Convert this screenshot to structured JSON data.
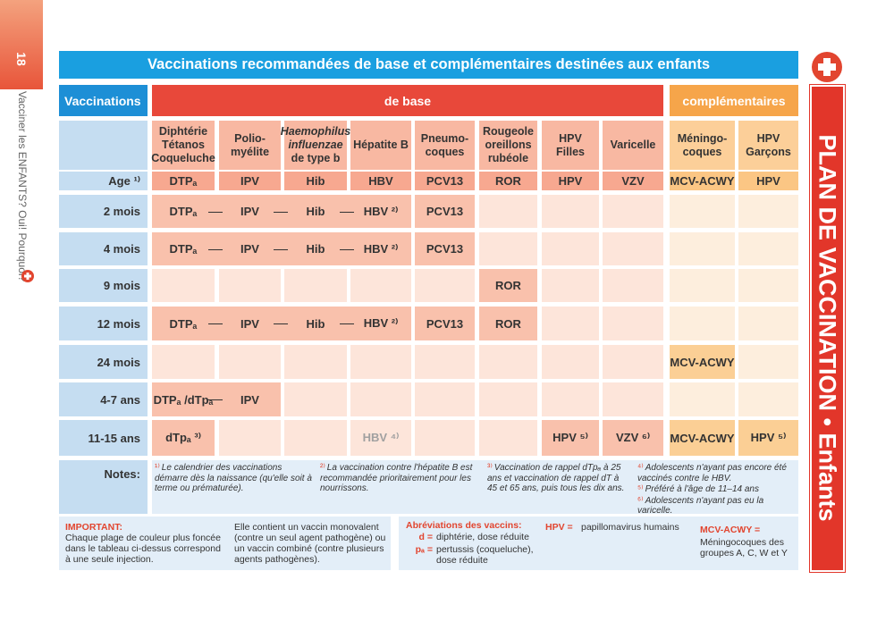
{
  "page_number": "18",
  "side_text": "Vacciner les ENFANTS? Oui! Pourquoi?",
  "title": "Vaccinations recommandées de base et complémentaires destinées aux enfants",
  "side_banner": "PLAN DE VACCINATION • Enfants",
  "table": {
    "corner": "Vaccinations",
    "group_base": "de base",
    "group_compl": "complémentaires",
    "age_label": "Age ¹⁾",
    "vaccines": [
      {
        "name": [
          "Diphtérie",
          "Tétanos",
          "Coqueluche"
        ],
        "abbr": "DTPₐ"
      },
      {
        "name": [
          "Polio-",
          "myélite"
        ],
        "abbr": "IPV"
      },
      {
        "name": [
          "Haemophilus",
          "influenzae",
          "de type b"
        ],
        "abbr": "Hib"
      },
      {
        "name": [
          "Hépatite B"
        ],
        "abbr": "HBV"
      },
      {
        "name": [
          "Pneumo-",
          "coques"
        ],
        "abbr": "PCV13"
      },
      {
        "name": [
          "Rougeole",
          "oreillons",
          "rubéole"
        ],
        "abbr": "ROR"
      },
      {
        "name": [
          "HPV",
          "Filles"
        ],
        "abbr": "HPV"
      },
      {
        "name": [
          "Varicelle"
        ],
        "abbr": "VZV"
      },
      {
        "name": [
          "Méningo-",
          "coques"
        ],
        "abbr": "MCV-ACWY"
      },
      {
        "name": [
          "HPV",
          "Garçons"
        ],
        "abbr": "HPV"
      }
    ],
    "rows": [
      {
        "age": "2 mois",
        "cells": [
          "DTPₐ",
          "IPV",
          "Hib",
          "HBV ²⁾",
          "PCV13",
          null,
          null,
          null,
          null,
          null
        ]
      },
      {
        "age": "4 mois",
        "cells": [
          "DTPₐ",
          "IPV",
          "Hib",
          "HBV ²⁾",
          "PCV13",
          null,
          null,
          null,
          null,
          null
        ]
      },
      {
        "age": "9 mois",
        "cells": [
          null,
          null,
          null,
          null,
          null,
          "ROR",
          null,
          null,
          null,
          null
        ]
      },
      {
        "age": "12 mois",
        "cells": [
          "DTPₐ",
          "IPV",
          "Hib",
          "HBV ²⁾",
          "PCV13",
          "ROR",
          null,
          null,
          null,
          null
        ]
      },
      {
        "age": "24 mois",
        "cells": [
          null,
          null,
          null,
          null,
          null,
          null,
          null,
          null,
          "MCV-ACWY",
          null
        ]
      },
      {
        "age": "4-7 ans",
        "cells": [
          "DTPₐ /dTpₐ",
          "IPV",
          null,
          null,
          null,
          null,
          null,
          null,
          null,
          null
        ]
      },
      {
        "age": "11-15 ans",
        "cells": [
          "dTpₐ ³⁾",
          null,
          null,
          "HBV ⁴⁾",
          null,
          null,
          "HPV ⁵⁾",
          "VZV ⁶⁾",
          "MCV-ACWY",
          "HPV ⁵⁾"
        ]
      }
    ],
    "notes_label": "Notes:",
    "notes": [
      [
        {
          "mark": "¹⁾",
          "text": "Le calendrier des vaccinations démarre dès la naissance (qu'elle soit à terme ou prématurée)."
        }
      ],
      [
        {
          "mark": "²⁾",
          "text": "La vaccination contre l'hépatite B est recommandée prioritairement pour les nourrissons."
        }
      ],
      [
        {
          "mark": "³⁾",
          "text": "Vaccination de rappel dTpₐ à 25 ans et vaccination de rappel dT à 45 et 65 ans, puis tous les dix ans."
        }
      ],
      [
        {
          "mark": "⁴⁾",
          "text": "Adolescents n'ayant pas encore été vaccinés contre le HBV."
        },
        {
          "mark": "⁵⁾",
          "text": "Préféré à l'âge de 11–14 ans"
        },
        {
          "mark": "⁶⁾",
          "text": "Adolescents n'ayant pas eu la varicelle."
        }
      ]
    ]
  },
  "important": {
    "heading": "IMPORTANT:",
    "text": "Chaque plage de couleur plus foncée dans le tableau ci-dessus correspond à une seule injection.",
    "text2": "Elle contient un vaccin monovalent (contre un seul agent pathogène) ou un vaccin combiné (contre plusieurs agents pathogènes)."
  },
  "abbreviations": {
    "heading": "Abréviations des vaccins:",
    "items": [
      {
        "key": "d =",
        "text": "diphtérie, dose réduite"
      },
      {
        "key": "pₐ =",
        "text": "pertussis (coqueluche), dose réduite"
      },
      {
        "key": "HPV =",
        "text": "papillomavirus humains"
      },
      {
        "key": "MCV-ACWY =",
        "text": "Méningocoques des groupes A, C, W et Y"
      }
    ]
  }
}
